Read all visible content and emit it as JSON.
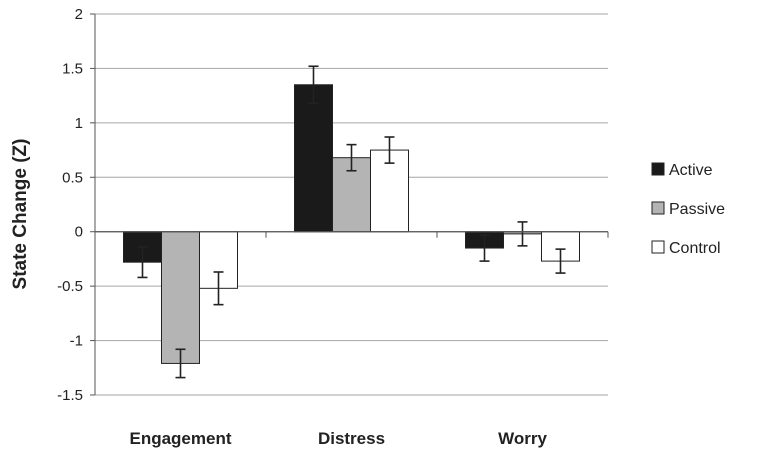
{
  "chart_data": {
    "type": "bar",
    "title": "",
    "xlabel": "",
    "ylabel": "State Change (Z)",
    "ylim": [
      -1.5,
      2
    ],
    "yticks": [
      2,
      1.5,
      1,
      0.5,
      0,
      -0.5,
      -1,
      -1.5
    ],
    "ytick_labels": [
      "2",
      "1.5",
      "1",
      "0.5",
      "0",
      "-0.5",
      "-1",
      "-1.5"
    ],
    "grid": true,
    "legend_position": "right",
    "categories": [
      "Engagement",
      "Distress",
      "Worry"
    ],
    "series": [
      {
        "name": "Active",
        "color": "#1a1a1a",
        "values": [
          -0.28,
          1.35,
          -0.15
        ],
        "errors": [
          0.14,
          0.17,
          0.12
        ]
      },
      {
        "name": "Passive",
        "color": "#b4b4b4",
        "values": [
          -1.21,
          0.68,
          -0.02
        ],
        "errors": [
          0.13,
          0.12,
          0.11
        ]
      },
      {
        "name": "Control",
        "color": "#ffffff",
        "values": [
          -0.52,
          0.75,
          -0.27
        ],
        "errors": [
          0.15,
          0.12,
          0.11
        ]
      }
    ]
  }
}
